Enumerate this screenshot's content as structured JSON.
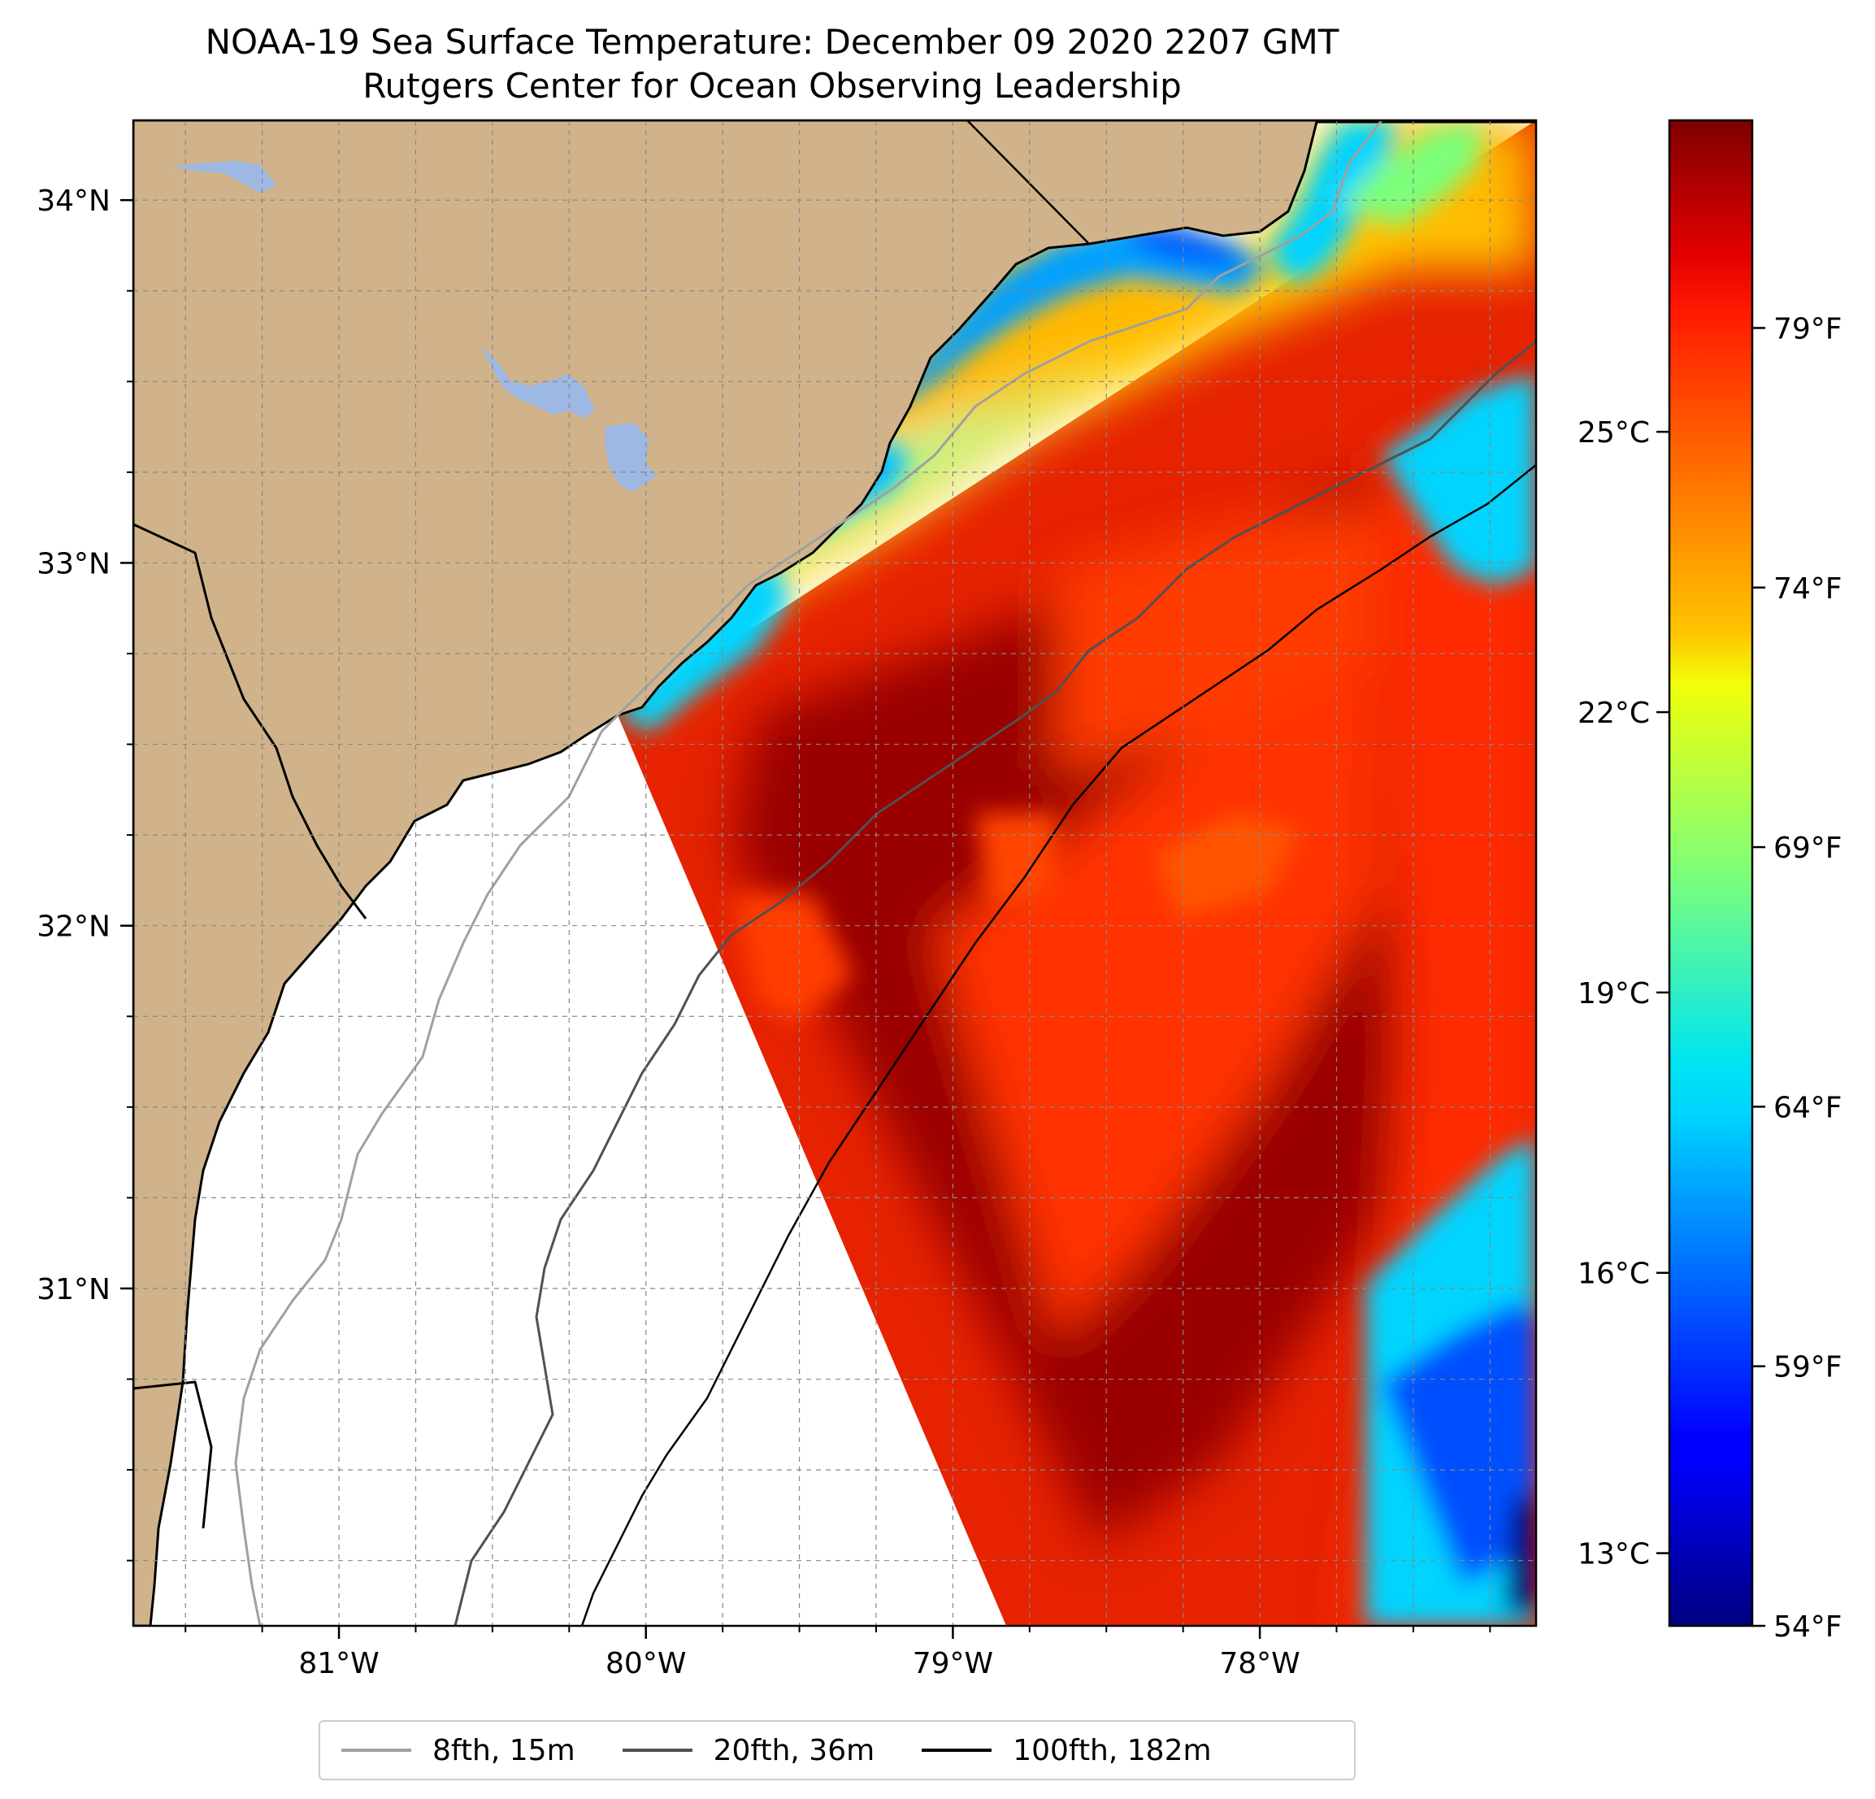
{
  "title": "NOAA-19 Sea Surface Temperature: December 09 2020 2207 GMT",
  "subtitle": "Rutgers Center for Ocean Observing Leadership",
  "map": {
    "lon_range": [
      -81.67,
      -77.1
    ],
    "lat_range": [
      30.07,
      34.22
    ],
    "lon_ticks": [
      {
        "value": -81,
        "label": "81°W"
      },
      {
        "value": -80,
        "label": "80°W"
      },
      {
        "value": -79,
        "label": "79°W"
      },
      {
        "value": -78,
        "label": "78°W"
      }
    ],
    "lat_ticks": [
      {
        "value": 34,
        "label": "34°N"
      },
      {
        "value": 33,
        "label": "33°N"
      },
      {
        "value": 32,
        "label": "32°N"
      },
      {
        "value": 31,
        "label": "31°N"
      }
    ],
    "grid": true,
    "land_color": "#d0b38b",
    "lake_color": "#9db8e3",
    "no_data_color": "#ffffff"
  },
  "colorbar": {
    "colormap": "jet",
    "range_f": [
      54,
      83
    ],
    "fahrenheit_ticks": [
      {
        "value": 79,
        "label": "79°F"
      },
      {
        "value": 74,
        "label": "74°F"
      },
      {
        "value": 69,
        "label": "69°F"
      },
      {
        "value": 64,
        "label": "64°F"
      },
      {
        "value": 59,
        "label": "59°F"
      },
      {
        "value": 54,
        "label": "54°F"
      }
    ],
    "celsius_ticks": [
      {
        "value": 25,
        "label": "25°C"
      },
      {
        "value": 22,
        "label": "22°C"
      },
      {
        "value": 19,
        "label": "19°C"
      },
      {
        "value": 16,
        "label": "16°C"
      },
      {
        "value": 13,
        "label": "13°C"
      }
    ]
  },
  "legend": {
    "placement": "bottom-center",
    "items": [
      {
        "label": "8fth, 15m",
        "color": "#a0a0a0"
      },
      {
        "label": "20fth, 36m",
        "color": "#505050"
      },
      {
        "label": "100fth, 182m",
        "color": "#000000"
      }
    ]
  }
}
